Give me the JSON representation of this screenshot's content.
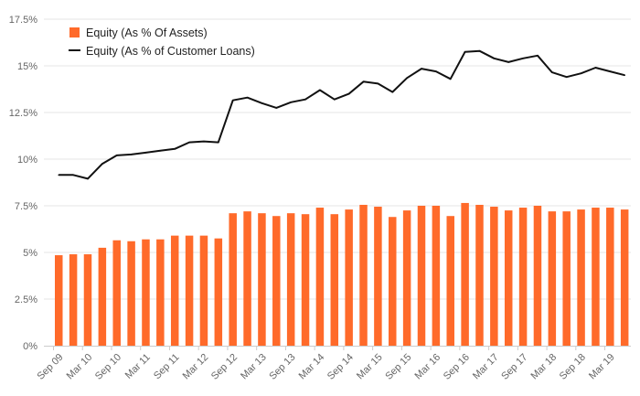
{
  "chart_data": {
    "type": "bar+line",
    "title": "",
    "xlabel": "",
    "ylabel": "",
    "ylim": [
      0,
      17.5
    ],
    "yticks": [
      0,
      2.5,
      5,
      7.5,
      10,
      12.5,
      15,
      17.5
    ],
    "ytick_labels": [
      "0%",
      "2.5%",
      "5%",
      "7.5%",
      "10%",
      "12.5%",
      "15%",
      "17.5%"
    ],
    "xtick_labels": [
      "Sep 09",
      "Mar 10",
      "Sep 10",
      "Mar 11",
      "Sep 11",
      "Mar 12",
      "Sep 12",
      "Mar 13",
      "Sep 13",
      "Mar 14",
      "Sep 14",
      "Mar 15",
      "Sep 15",
      "Mar 16",
      "Sep 16",
      "Mar 17",
      "Sep 17",
      "Mar 18",
      "Sep 18",
      "Mar 19"
    ],
    "grid": true,
    "legend_position": "top-left",
    "series": [
      {
        "name": "Equity (As % Of Assets)",
        "kind": "bar",
        "color": "#ff6a2a",
        "values": [
          4.85,
          4.9,
          4.9,
          5.25,
          5.65,
          5.6,
          5.7,
          5.7,
          5.9,
          5.9,
          5.9,
          5.75,
          7.1,
          7.2,
          7.1,
          6.95,
          7.1,
          7.05,
          7.4,
          7.05,
          7.3,
          7.55,
          7.45,
          6.9,
          7.25,
          7.5,
          7.5,
          6.95,
          7.65,
          7.55,
          7.45,
          7.25,
          7.4,
          7.5,
          7.2,
          7.2,
          7.3,
          7.4,
          7.4,
          7.3
        ]
      },
      {
        "name": "Equity (As % of Customer Loans)",
        "kind": "line",
        "color": "#111111",
        "values": [
          9.15,
          9.15,
          8.95,
          9.75,
          10.2,
          10.25,
          10.35,
          10.45,
          10.55,
          10.9,
          10.95,
          10.9,
          13.15,
          13.3,
          13.0,
          12.75,
          13.05,
          13.2,
          13.7,
          13.2,
          13.5,
          14.15,
          14.05,
          13.6,
          14.35,
          14.85,
          14.7,
          14.3,
          15.75,
          15.8,
          15.4,
          15.2,
          15.4,
          15.55,
          14.65,
          14.4,
          14.6,
          14.9,
          14.7,
          14.5
        ]
      }
    ]
  }
}
